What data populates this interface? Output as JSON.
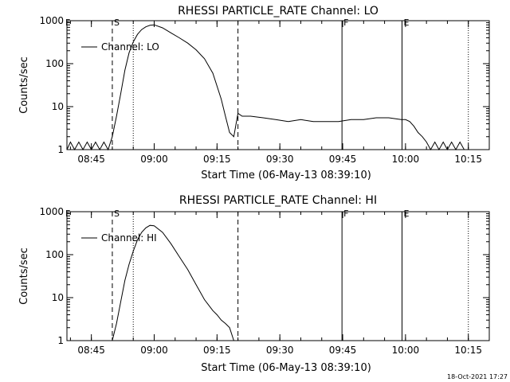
{
  "footer_stamp": "18-Oct-2021 17:27",
  "chart_data": [
    {
      "type": "line",
      "title": "RHESSI PARTICLE_RATE Channel: LO",
      "xlabel": "Start Time (06-May-13 08:39:10)",
      "ylabel": "Counts/sec",
      "y_scale": "log",
      "ylim": [
        1,
        1000
      ],
      "xlim": [
        "08:39:10",
        "10:20:00"
      ],
      "x_ticks": [
        "08:45",
        "09:00",
        "09:15",
        "09:30",
        "09:45",
        "10:00",
        "10:15"
      ],
      "y_ticks": [
        "1",
        "10",
        "100",
        "1000"
      ],
      "legend": "top-left",
      "series": [
        {
          "name": "Channel: LO",
          "x": [
            "08:39:10",
            "08:40:00",
            "08:41:00",
            "08:42:00",
            "08:43:00",
            "08:44:00",
            "08:45:00",
            "08:46:00",
            "08:47:00",
            "08:48:00",
            "08:49:00",
            "08:50:00",
            "08:51:00",
            "08:52:00",
            "08:53:00",
            "08:54:00",
            "08:55:00",
            "08:56:00",
            "08:57:00",
            "08:58:00",
            "08:59:00",
            "09:00:00",
            "09:02:00",
            "09:04:00",
            "09:06:00",
            "09:08:00",
            "09:10:00",
            "09:12:00",
            "09:14:00",
            "09:16:00",
            "09:17:00",
            "09:18:00",
            "09:19:00",
            "09:20:00",
            "09:21:00",
            "09:23:00",
            "09:26:00",
            "09:29:00",
            "09:32:00",
            "09:35:00",
            "09:38:00",
            "09:41:00",
            "09:44:00",
            "09:47:00",
            "09:50:00",
            "09:53:00",
            "09:56:00",
            "09:59:00",
            "10:00:00",
            "10:01:00",
            "10:02:00",
            "10:03:00",
            "10:04:00",
            "10:05:00",
            "10:06:00",
            "10:07:00",
            "10:08:00",
            "10:09:00",
            "10:10:00",
            "10:11:00",
            "10:12:00",
            "10:13:00",
            "10:14:00",
            "10:15:00"
          ],
          "values": [
            1,
            1.5,
            1,
            1.5,
            1,
            1.5,
            1,
            1.5,
            1,
            1.5,
            1,
            2,
            6,
            20,
            70,
            180,
            320,
            480,
            620,
            720,
            780,
            800,
            680,
            520,
            400,
            300,
            210,
            130,
            60,
            15,
            6,
            2.5,
            2,
            7,
            6,
            6,
            5.5,
            5,
            4.5,
            5,
            4.5,
            4.5,
            4.5,
            5,
            5,
            5.5,
            5.5,
            5,
            5,
            4.5,
            3.5,
            2.5,
            2,
            1.5,
            1,
            1.5,
            1,
            1.5,
            1,
            1.5,
            1,
            1.5,
            1,
            1
          ]
        }
      ],
      "markers": {
        "S": "08:50:00",
        "F": "09:44:50",
        "E": "09:59:10",
        "dotted": [
          "08:55:00",
          "10:15:00"
        ],
        "dashed": [
          "08:50:00",
          "09:20:00"
        ],
        "solid": [
          "09:44:50",
          "09:59:10"
        ]
      }
    },
    {
      "type": "line",
      "title": "RHESSI PARTICLE_RATE Channel: HI",
      "xlabel": "Start Time (06-May-13 08:39:10)",
      "ylabel": "Counts/sec",
      "y_scale": "log",
      "ylim": [
        1,
        1000
      ],
      "xlim": [
        "08:39:10",
        "10:20:00"
      ],
      "x_ticks": [
        "08:45",
        "09:00",
        "09:15",
        "09:30",
        "09:45",
        "10:00",
        "10:15"
      ],
      "y_ticks": [
        "1",
        "10",
        "100",
        "1000"
      ],
      "legend": "top-left",
      "series": [
        {
          "name": "Channel: HI",
          "x": [
            "08:50:00",
            "08:51:00",
            "08:52:00",
            "08:53:00",
            "08:54:00",
            "08:55:00",
            "08:56:00",
            "08:57:00",
            "08:58:00",
            "08:59:00",
            "09:00:00",
            "09:02:00",
            "09:04:00",
            "09:06:00",
            "09:08:00",
            "09:10:00",
            "09:12:00",
            "09:14:00",
            "09:15:00",
            "09:16:00",
            "09:17:00",
            "09:18:00",
            "09:19:00"
          ],
          "values": [
            1,
            2.5,
            8,
            25,
            60,
            120,
            220,
            330,
            420,
            480,
            470,
            330,
            180,
            90,
            45,
            20,
            9,
            5,
            4,
            3,
            2.5,
            2,
            1
          ]
        }
      ],
      "markers": {
        "S": "08:50:00",
        "F": "09:44:50",
        "E": "09:59:10",
        "dotted": [
          "08:55:00",
          "10:15:00"
        ],
        "dashed": [
          "08:50:00",
          "09:20:00"
        ],
        "solid": [
          "09:44:50",
          "09:59:10"
        ]
      }
    }
  ]
}
